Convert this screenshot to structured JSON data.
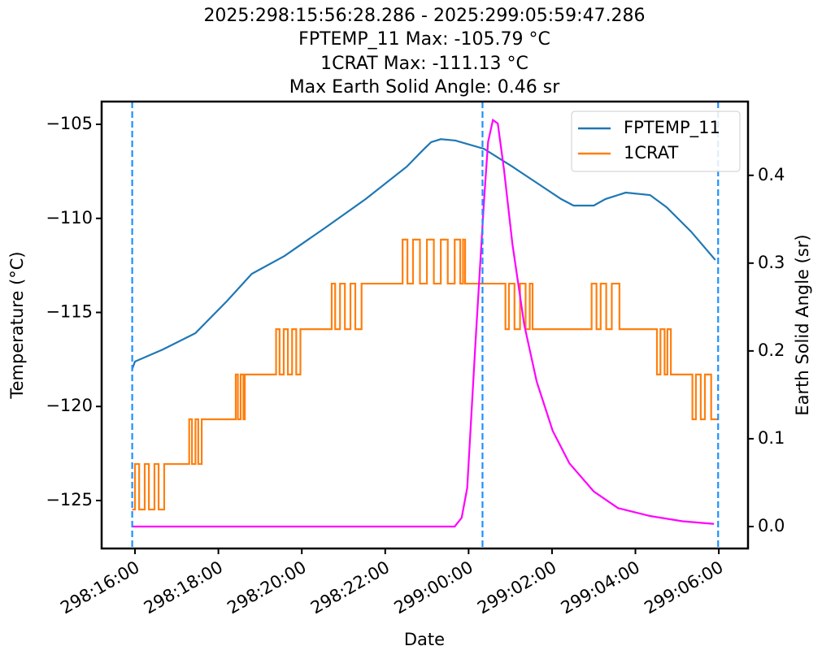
{
  "chart_data": {
    "type": "line",
    "title": [
      "2025:298:15:56:28.286 - 2025:299:05:59:47.286",
      "FPTEMP_11 Max: -105.79 °C",
      "1CRAT Max: -111.13 °C",
      "Max Earth Solid Angle: 0.46 sr"
    ],
    "xlabel": "Date",
    "ylabel": "Temperature (°C)",
    "y2label": "Earth Solid Angle (sr)",
    "xlim": [
      "298:15:12",
      "299:06:42"
    ],
    "xticks": [
      "298:16:00",
      "298:18:00",
      "298:20:00",
      "298:22:00",
      "299:00:00",
      "299:02:00",
      "299:04:00",
      "299:06:00"
    ],
    "ylim": [
      -127.55,
      -103.79
    ],
    "yticks": [
      {
        "value": -125,
        "label": "−125"
      },
      {
        "value": -120,
        "label": "−120"
      },
      {
        "value": -115,
        "label": "−115"
      },
      {
        "value": -110,
        "label": "−110"
      },
      {
        "value": -105,
        "label": "−105"
      }
    ],
    "y2lim": [
      -0.025,
      0.484
    ],
    "y2ticks": [
      {
        "value": 0,
        "label": "0.0"
      },
      0.1,
      0.2,
      0.3,
      0.4
    ],
    "vlines": {
      "x": [
        "298:15:56",
        "299:00:20",
        "299:05:59"
      ],
      "color": "#1e90ff"
    },
    "legend": "upper right",
    "series": [
      {
        "name": "FPTEMP_11",
        "color": "#1f77b4",
        "x": [
          "298:15:56",
          "298:16:00",
          "298:16:40",
          "298:17:27",
          "298:18:13",
          "298:18:48",
          "298:19:35",
          "298:20:34",
          "298:21:32",
          "298:22:31",
          "298:22:54",
          "298:23:06",
          "298:23:20",
          "298:23:41",
          "299:00:22",
          "299:01:03",
          "299:01:38",
          "299:02:13",
          "299:02:31",
          "299:03:00",
          "299:03:17",
          "299:03:46",
          "299:04:21",
          "299:04:45",
          "299:05:20",
          "299:05:55"
        ],
        "values": [
          -118.0,
          -117.61,
          -116.97,
          -116.1,
          -114.37,
          -112.95,
          -112.0,
          -110.49,
          -108.97,
          -107.25,
          -106.38,
          -105.95,
          -105.79,
          -105.86,
          -106.3,
          -107.25,
          -108.11,
          -108.97,
          -109.32,
          -109.32,
          -108.97,
          -108.63,
          -108.76,
          -109.41,
          -110.7,
          -112.21
        ]
      },
      {
        "name": "1CRAT",
        "color": "#ff7f0e",
        "drawstyle": "steps-post",
        "x": [
          "298:15:56",
          "298:16:00",
          "298:16:06",
          "298:16:14",
          "298:16:20",
          "298:16:28",
          "298:16:34",
          "298:16:42",
          "298:17:18",
          "298:17:22",
          "298:17:27",
          "298:17:31",
          "298:17:36",
          "298:18:25",
          "298:18:28",
          "298:18:32",
          "298:18:36",
          "298:18:38",
          "298:19:23",
          "298:19:28",
          "298:19:34",
          "298:19:40",
          "298:19:46",
          "298:19:52",
          "298:19:58",
          "298:20:43",
          "298:20:48",
          "298:20:55",
          "298:21:02",
          "298:21:10",
          "298:21:17",
          "298:21:26",
          "298:22:25",
          "298:22:32",
          "298:22:40",
          "298:22:50",
          "298:23:00",
          "298:23:10",
          "298:23:20",
          "298:23:30",
          "298:23:40",
          "298:23:48",
          "298:23:52",
          "298:23:55",
          "299:00:53",
          "299:00:58",
          "299:01:06",
          "299:01:14",
          "299:01:22",
          "299:01:28",
          "299:01:32",
          "299:02:57",
          "299:03:04",
          "299:03:10",
          "299:03:18",
          "299:03:26",
          "299:03:37",
          "299:04:31",
          "299:04:36",
          "299:04:42",
          "299:04:46",
          "299:04:51",
          "299:05:22",
          "299:05:27",
          "299:05:34",
          "299:05:40",
          "299:05:49",
          "299:05:59"
        ],
        "values": [
          -125.48,
          -123.06,
          -125.48,
          -123.06,
          -125.48,
          -123.06,
          -125.48,
          -123.06,
          -120.68,
          -123.06,
          -120.68,
          -123.06,
          -120.68,
          -118.3,
          -120.68,
          -118.3,
          -120.68,
          -118.3,
          -115.89,
          -118.3,
          -115.89,
          -118.3,
          -115.89,
          -118.3,
          -115.89,
          -113.47,
          -115.89,
          -113.47,
          -115.89,
          -113.47,
          -115.89,
          -113.47,
          -111.13,
          -113.47,
          -111.13,
          -113.47,
          -111.13,
          -113.47,
          -111.13,
          -113.47,
          -111.13,
          -113.47,
          -111.13,
          -113.47,
          -115.89,
          -113.47,
          -115.89,
          -113.47,
          -115.89,
          -113.47,
          -115.89,
          -113.47,
          -115.89,
          -113.47,
          -115.89,
          -113.47,
          -115.89,
          -118.3,
          -115.89,
          -118.3,
          -115.89,
          -118.3,
          -120.68,
          -118.3,
          -120.68,
          -118.3,
          -120.68,
          -120.68
        ]
      },
      {
        "color": "#ff00ff",
        "axis": "y2",
        "x": [
          "298:15:56",
          "298:23:40",
          "298:23:50",
          "298:23:58",
          "299:00:10",
          "299:00:22",
          "299:00:28",
          "299:00:35",
          "299:00:42",
          "299:00:51",
          "299:01:03",
          "299:01:20",
          "299:01:38",
          "299:02:01",
          "299:02:25",
          "299:03:00",
          "299:03:35",
          "299:04:21",
          "299:05:08",
          "299:05:53"
        ],
        "values": [
          0,
          0,
          0.01,
          0.044,
          0.211,
          0.369,
          0.438,
          0.463,
          0.459,
          0.406,
          0.322,
          0.23,
          0.165,
          0.109,
          0.072,
          0.04,
          0.021,
          0.012,
          0.006,
          0.003
        ]
      }
    ]
  }
}
